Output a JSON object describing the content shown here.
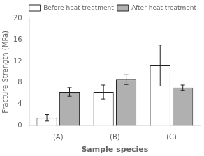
{
  "chart_data": {
    "type": "bar",
    "categories": [
      "(A)",
      "(B)",
      "(C)"
    ],
    "series": [
      {
        "name": "Before heat treatment",
        "color": "#ffffff",
        "values": [
          1.5,
          6.3,
          11.2
        ],
        "errors": [
          0.6,
          1.3,
          3.8
        ]
      },
      {
        "name": "After heat treatment",
        "color": "#b0b0b0",
        "values": [
          6.3,
          8.6,
          7.1
        ],
        "errors": [
          0.8,
          0.9,
          0.5
        ]
      }
    ],
    "xlabel": "Sample species",
    "ylabel": "Fracture Strength (MPa)",
    "ylim": [
      0,
      20
    ],
    "yticks": [
      0,
      4,
      8,
      12,
      16,
      20
    ],
    "grid": false,
    "legend": "upper right"
  }
}
